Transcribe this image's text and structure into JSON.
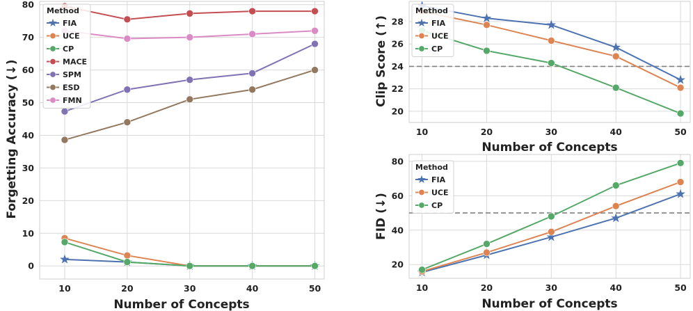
{
  "chart_data": [
    {
      "id": "forgetting",
      "type": "line",
      "xlabel": "Number of Concepts",
      "ylabel": "Forgetting Accuracy (↓)",
      "x": [
        10,
        20,
        30,
        40,
        50
      ],
      "xlim": [
        6,
        51.5
      ],
      "ylim": [
        -4,
        81
      ],
      "yticks": [
        0,
        10,
        20,
        30,
        40,
        50,
        60,
        70,
        80
      ],
      "grid": true,
      "legend_title": "Method",
      "legend_position": "top-left",
      "series": [
        {
          "name": "FIA",
          "color": "#4c72b0",
          "marker": "star",
          "values": [
            2,
            1.2,
            0,
            0,
            0
          ]
        },
        {
          "name": "UCE",
          "color": "#dd8452",
          "marker": "circle",
          "values": [
            8.5,
            3.2,
            0,
            0,
            0
          ]
        },
        {
          "name": "CP",
          "color": "#55a868",
          "marker": "circle",
          "values": [
            7.3,
            1.2,
            0,
            0,
            0
          ]
        },
        {
          "name": "MACE",
          "color": "#c44e52",
          "marker": "circle",
          "values": [
            79.5,
            75.5,
            77.3,
            78,
            78
          ]
        },
        {
          "name": "SPM",
          "color": "#8172b3",
          "marker": "circle",
          "values": [
            47.3,
            54,
            57,
            59,
            68
          ]
        },
        {
          "name": "ESD",
          "color": "#937860",
          "marker": "circle",
          "values": [
            38.6,
            44,
            51,
            54,
            60
          ]
        },
        {
          "name": "FMN",
          "color": "#da8bc3",
          "marker": "circle",
          "values": [
            72,
            69.6,
            70,
            71,
            72
          ]
        }
      ]
    },
    {
      "id": "clip",
      "type": "line",
      "xlabel": "Number of Concepts",
      "ylabel": "Clip Score (↑)",
      "x": [
        10,
        20,
        30,
        40,
        50
      ],
      "xlim": [
        8,
        51.5
      ],
      "ylim": [
        19,
        29.8
      ],
      "yticks": [
        20,
        22,
        24,
        26,
        28
      ],
      "grid": true,
      "reference_line": 24,
      "legend_title": "Method",
      "legend_position": "top-left",
      "series": [
        {
          "name": "FIA",
          "color": "#4c72b0",
          "marker": "star",
          "values": [
            29.4,
            28.3,
            27.7,
            25.7,
            22.8
          ]
        },
        {
          "name": "UCE",
          "color": "#dd8452",
          "marker": "circle",
          "values": [
            28.9,
            27.7,
            26.3,
            24.9,
            22.1
          ]
        },
        {
          "name": "CP",
          "color": "#55a868",
          "marker": "circle",
          "values": [
            27.2,
            25.4,
            24.3,
            22.1,
            19.8
          ]
        }
      ]
    },
    {
      "id": "fid",
      "type": "line",
      "xlabel": "Number of Concepts",
      "ylabel": "FID (↓)",
      "x": [
        10,
        20,
        30,
        40,
        50
      ],
      "xlim": [
        8,
        51.5
      ],
      "ylim": [
        12,
        84
      ],
      "yticks": [
        20,
        40,
        60,
        80
      ],
      "grid": true,
      "reference_line": 50,
      "legend_title": "Method",
      "legend_position": "top-left",
      "series": [
        {
          "name": "FIA",
          "color": "#4c72b0",
          "marker": "star",
          "values": [
            15.5,
            25.5,
            36,
            47,
            61
          ]
        },
        {
          "name": "UCE",
          "color": "#dd8452",
          "marker": "circle",
          "values": [
            16,
            27,
            39,
            54,
            68
          ]
        },
        {
          "name": "CP",
          "color": "#55a868",
          "marker": "circle",
          "values": [
            17,
            32,
            48,
            66,
            79
          ]
        }
      ]
    }
  ]
}
